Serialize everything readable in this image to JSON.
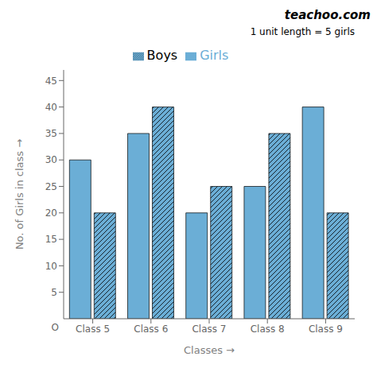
{
  "chart_data": {
    "type": "bar",
    "title": "teachoo.com",
    "xlabel": "Classes →",
    "ylabel": "No. of Girls in class →",
    "annotations": [
      "1 unit length = 5 girls",
      "O"
    ],
    "categories": [
      "Class 5",
      "Class 6",
      "Class 7",
      "Class 8",
      "Class 9"
    ],
    "series": [
      {
        "name": "Girls",
        "color": "#6baed6",
        "values": [
          30,
          35,
          20,
          25,
          40
        ]
      },
      {
        "name": "Boys",
        "color": "#6baed6",
        "values": [
          20,
          40,
          25,
          35,
          20
        ]
      }
    ],
    "ylim": [
      0,
      47
    ],
    "yticks": [
      5,
      10,
      15,
      20,
      25,
      30,
      35,
      40,
      45
    ],
    "grid": false,
    "legend": "top"
  }
}
